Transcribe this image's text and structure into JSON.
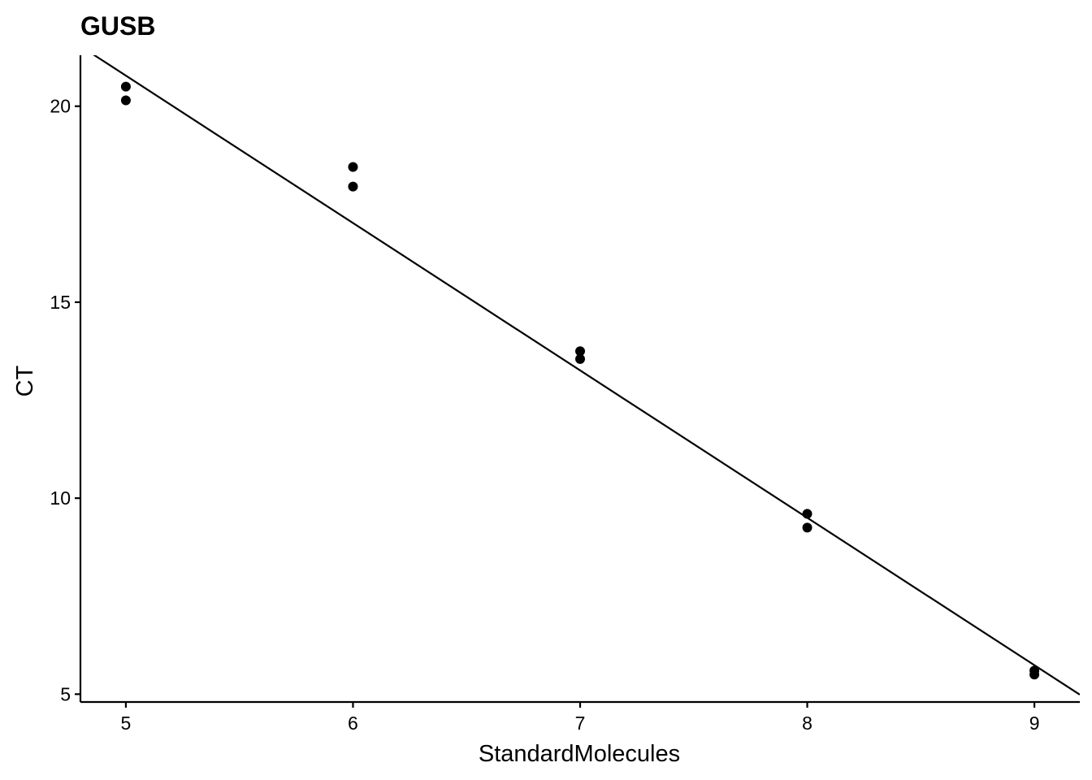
{
  "chart_data": {
    "type": "scatter",
    "title": "GUSB",
    "xlabel": "StandardMolecules",
    "ylabel": "CT",
    "xlim": [
      4.8,
      9.2
    ],
    "ylim": [
      4.8,
      21.3
    ],
    "x_ticks": [
      5,
      6,
      7,
      8,
      9
    ],
    "y_ticks": [
      5,
      10,
      15,
      20
    ],
    "grid": false,
    "legend": "none",
    "series": [
      {
        "points": [
          {
            "x": 5,
            "y": 20.5
          },
          {
            "x": 5,
            "y": 20.15
          },
          {
            "x": 6,
            "y": 18.45
          },
          {
            "x": 6,
            "y": 17.95
          },
          {
            "x": 7,
            "y": 13.75
          },
          {
            "x": 7,
            "y": 13.55
          },
          {
            "x": 8,
            "y": 9.6
          },
          {
            "x": 8,
            "y": 9.25
          },
          {
            "x": 9,
            "y": 5.6
          },
          {
            "x": 9,
            "y": 5.5
          }
        ]
      }
    ],
    "fit_line": {
      "type": "linear",
      "slope": -3.76,
      "intercept": 39.58
    },
    "colors": {
      "points": "#000000",
      "line": "#000000",
      "background": "#ffffff"
    }
  }
}
